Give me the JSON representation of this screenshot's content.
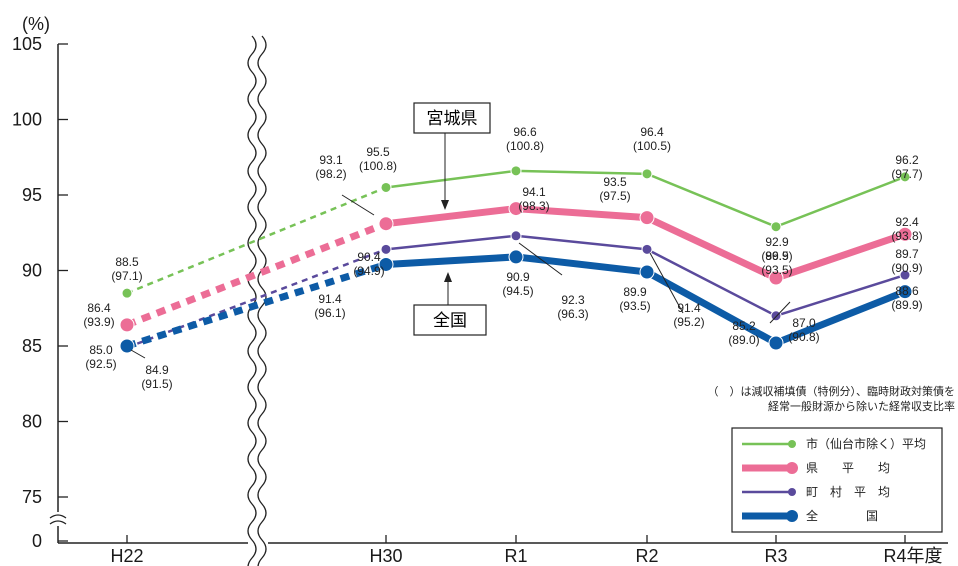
{
  "chart_data": {
    "type": "line",
    "unit_label": "(%)",
    "categories": [
      "H22",
      "H30",
      "R1",
      "R2",
      "R3",
      "R4年度"
    ],
    "y_ticks": [
      {
        "value": 105,
        "label": "105"
      },
      {
        "value": 100,
        "label": "100"
      },
      {
        "value": 95,
        "label": "95"
      },
      {
        "value": 90,
        "label": "90"
      },
      {
        "value": 85,
        "label": "85"
      },
      {
        "value": 80,
        "label": "80"
      },
      {
        "value": 75,
        "label": "75"
      },
      {
        "value": 0,
        "label": "0"
      }
    ],
    "ylim": [
      73,
      105
    ],
    "axis_break": true,
    "series": [
      {
        "id": "shi",
        "name": "市（仙台市除く）平均",
        "color": "#77c257",
        "values": [
          88.5,
          95.5,
          96.6,
          96.4,
          92.9,
          96.2
        ],
        "labels": [
          "88.5\n(97.1)",
          "95.5\n(100.8)",
          "96.6\n(100.8)",
          "96.4\n(100.5)",
          "92.9\n(96.9)",
          "96.2\n(97.7)"
        ]
      },
      {
        "id": "ken",
        "name": "県　　平　　均",
        "color": "#ec6d96",
        "values": [
          86.4,
          93.1,
          94.1,
          93.5,
          89.5,
          92.4
        ],
        "labels": [
          "86.4\n(93.9)",
          "93.1\n(98.2)",
          "94.1\n(98.3)",
          "93.5\n(97.5)",
          "89.5\n(93.5)",
          "92.4\n(93.8)"
        ]
      },
      {
        "id": "choson",
        "name": "町　村　平　均",
        "color": "#5a4a9c",
        "values": [
          84.9,
          91.4,
          92.3,
          91.4,
          87.0,
          89.7
        ],
        "labels": [
          "84.9\n(91.5)",
          "91.4\n(96.1)",
          "92.3\n(96.3)",
          "91.4\n(95.2)",
          "87.0\n(90.8)",
          "89.7\n(90.9)"
        ]
      },
      {
        "id": "zenkoku",
        "name": "全　　　　国",
        "color": "#0d5ba6",
        "values": [
          85.0,
          90.4,
          90.9,
          89.9,
          85.2,
          88.6
        ],
        "labels": [
          "85.0\n(92.5)",
          "90.4\n(94.9)",
          "90.9\n(94.5)",
          "89.9\n(93.5)",
          "85.2\n(89.0)",
          "88.6\n(89.9)"
        ]
      }
    ],
    "annotations": {
      "miyagi": "宮城県",
      "zenkoku": "全国",
      "note_line1": "（　）は減収補填債（特例分）、臨時財政対策債を",
      "note_line2": "経常一般財源から除いた経常収支比率"
    },
    "legend_position": "bottom-right"
  }
}
